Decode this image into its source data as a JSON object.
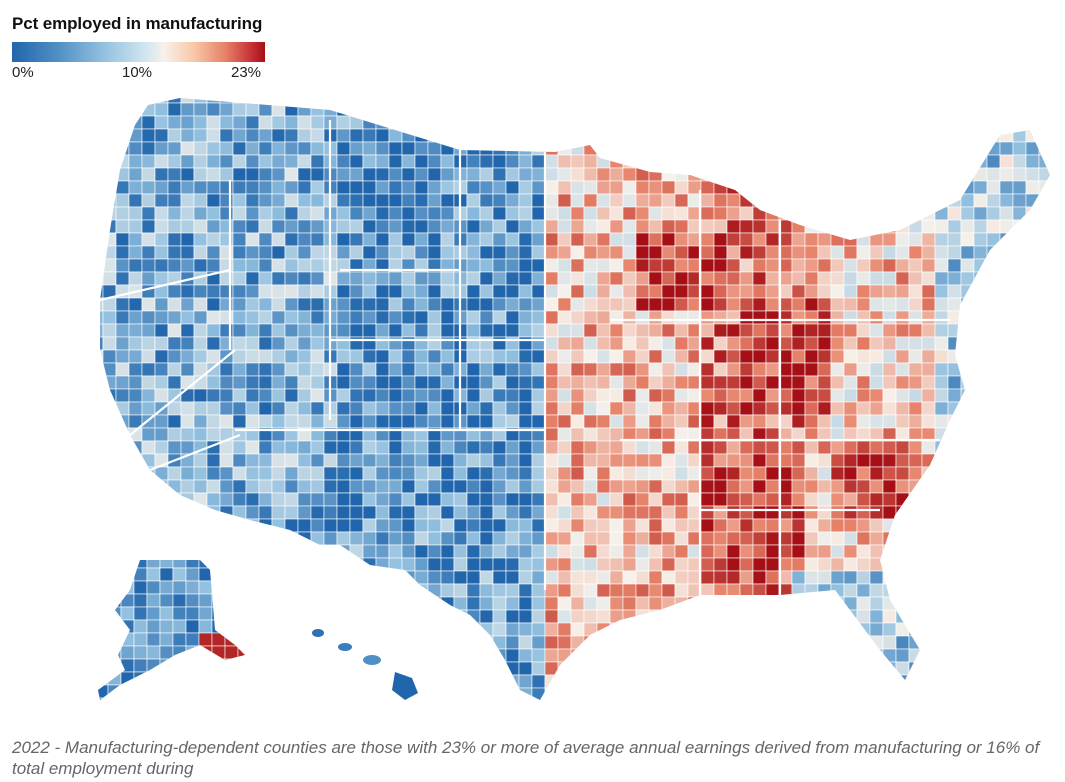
{
  "legend": {
    "title": "Pct employed in manufacturing",
    "min_label": "0%",
    "mid_label": "10%",
    "max_label": "23%",
    "colors": [
      "#2166ac",
      "#92c0df",
      "#f7f1ea",
      "#e7836a",
      "#a50f15"
    ]
  },
  "map": {
    "subject": "United States counties",
    "variable": "Pct employed in manufacturing"
  },
  "footnote": "2022 - Manufacturing-dependent counties are those with 23% or more of average annual earnings derived from manufacturing or 16% of total employment during"
}
